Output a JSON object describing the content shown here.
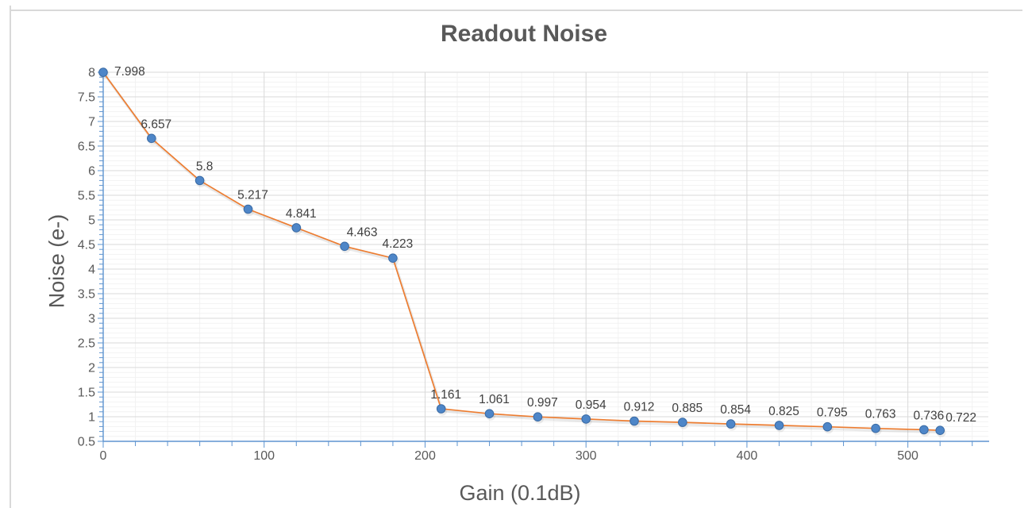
{
  "chart_data": {
    "type": "line",
    "title": "Readout Noise",
    "xlabel": "Gain (0.1dB)",
    "ylabel": "Noise (e-)",
    "x": [
      0,
      30,
      60,
      90,
      120,
      150,
      180,
      210,
      240,
      270,
      300,
      330,
      360,
      390,
      420,
      450,
      480,
      510,
      520
    ],
    "values": [
      7.998,
      6.657,
      5.8,
      5.217,
      4.841,
      4.463,
      4.223,
      1.161,
      1.061,
      0.997,
      0.954,
      0.912,
      0.885,
      0.854,
      0.825,
      0.795,
      0.763,
      0.736,
      0.722
    ],
    "point_labels": [
      "7.998",
      "6.657",
      "5.8",
      "5.217",
      "4.841",
      "4.463",
      "4.223",
      "1.161",
      "1.061",
      "0.997",
      "0.954",
      "0.912",
      "0.885",
      "0.854",
      "0.825",
      "0.795",
      "0.763",
      "0.736",
      "0.722"
    ],
    "xlim": [
      0,
      550
    ],
    "ylim": [
      0.5,
      8
    ],
    "x_major_unit": 100,
    "x_minor_unit": 20,
    "y_major_unit": 0.5,
    "y_minor_unit": 0.1,
    "x_tick_labels": [
      "0",
      "100",
      "200",
      "300",
      "400",
      "500"
    ],
    "y_tick_labels": [
      "8",
      "7.5",
      "7",
      "6.5",
      "6",
      "5.5",
      "5",
      "4.5",
      "4",
      "3.5",
      "3",
      "2.5",
      "2",
      "1.5",
      "1",
      "0.5"
    ],
    "grid": true,
    "legend": false,
    "colors": {
      "line": "#ED7D31",
      "marker_fill": "#4E86C8",
      "marker_edge": "#3A6BA5",
      "axis": "#5E94D0",
      "grid_major": "#D9D9D9",
      "grid_minor": "#F2F2F2",
      "title_text": "#595959",
      "tick_text": "#595959",
      "data_label_text": "#404040",
      "chart_border": "#D9D9D9"
    }
  }
}
